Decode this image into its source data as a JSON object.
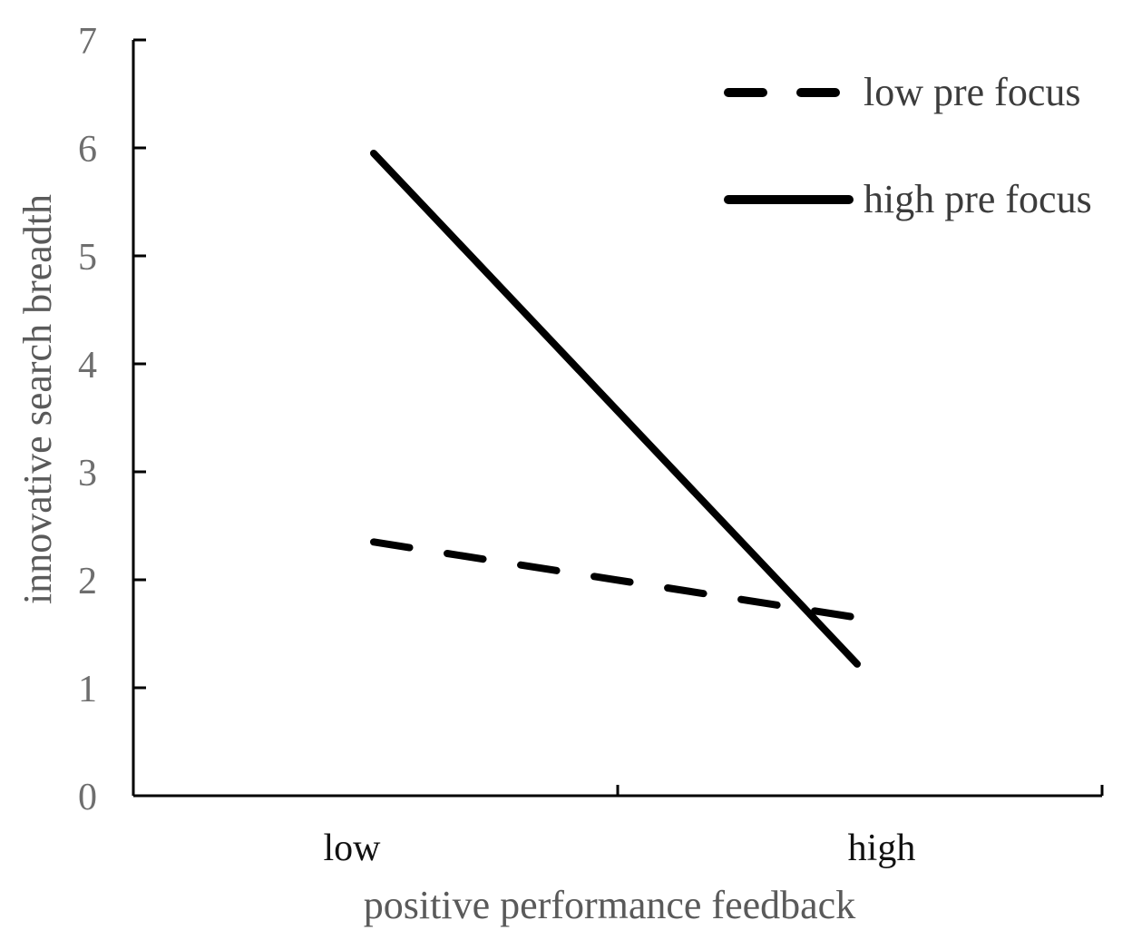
{
  "chart_data": {
    "type": "line",
    "title": "",
    "xlabel": "positive performance feedback",
    "ylabel": "innovative search breadth",
    "categories": [
      "low",
      "high"
    ],
    "ylim": [
      0,
      7
    ],
    "yticks": [
      "0",
      "1",
      "2",
      "3",
      "4",
      "5",
      "6",
      "7"
    ],
    "grid": false,
    "legend_position": "top-right",
    "series": [
      {
        "name": "low pre focus",
        "style": "dashed",
        "color": "#000000",
        "values": [
          2.35,
          1.65
        ]
      },
      {
        "name": "high pre focus",
        "style": "solid",
        "color": "#000000",
        "values": [
          5.95,
          1.22
        ]
      }
    ]
  }
}
